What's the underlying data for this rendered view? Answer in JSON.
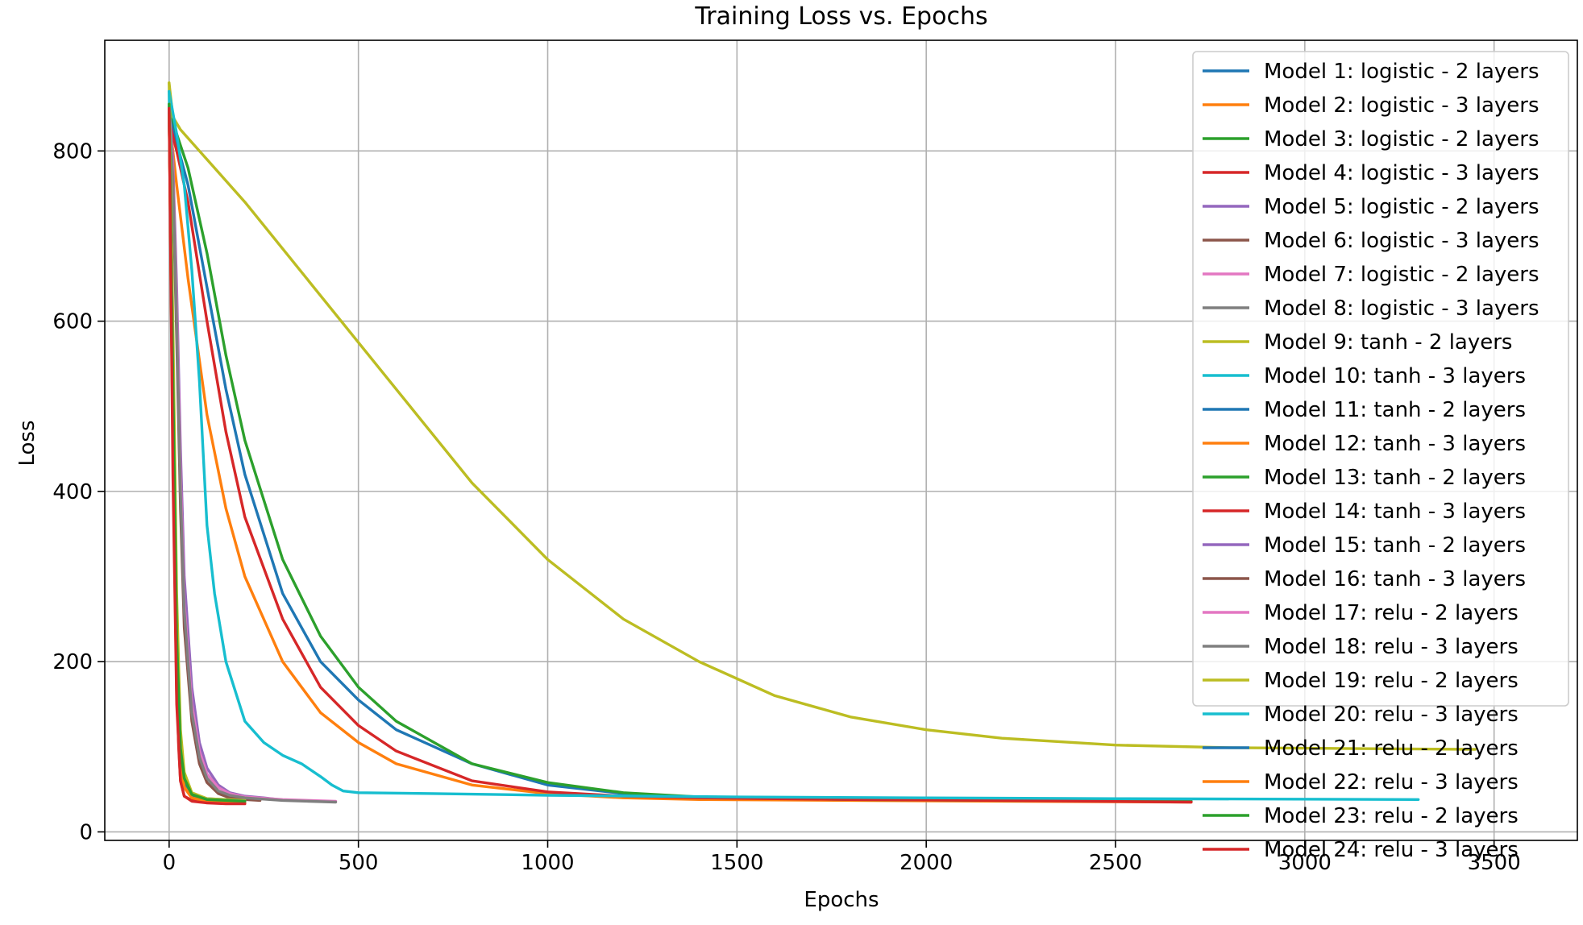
{
  "chart_data": {
    "type": "line",
    "title": "Training Loss vs. Epochs",
    "xlabel": "Epochs",
    "ylabel": "Loss",
    "xlim": [
      -170,
      3720
    ],
    "ylim": [
      -10,
      930
    ],
    "xticks": [
      0,
      500,
      1000,
      1500,
      2000,
      2500,
      3000,
      3500
    ],
    "yticks": [
      0,
      200,
      400,
      600,
      800
    ],
    "grid": true,
    "legend_position": "top-right",
    "series": [
      {
        "name": "Model 1: logistic - 2 layers",
        "color": "#1f77b4",
        "x": [
          0,
          20,
          50,
          100,
          150,
          200,
          300,
          400,
          500,
          600,
          800,
          1000,
          1200,
          1400,
          1800,
          2200,
          2700
        ],
        "y": [
          845,
          810,
          760,
          640,
          520,
          420,
          280,
          200,
          155,
          120,
          80,
          55,
          45,
          40,
          38,
          37,
          36
        ]
      },
      {
        "name": "Model 2: logistic - 3 layers",
        "color": "#ff7f0e",
        "x": [
          0,
          20,
          50,
          100,
          150,
          200,
          300,
          400,
          500,
          600,
          800,
          1000,
          1200,
          1400,
          1800,
          2200,
          2700
        ],
        "y": [
          840,
          760,
          650,
          490,
          380,
          300,
          200,
          140,
          105,
          80,
          55,
          45,
          40,
          38,
          37,
          36,
          35
        ]
      },
      {
        "name": "Model 3: logistic - 2 layers",
        "color": "#2ca02c",
        "x": [
          0,
          20,
          50,
          100,
          150,
          200,
          300,
          400,
          500,
          600,
          800,
          1000,
          1200,
          1400,
          1800,
          2200,
          2700
        ],
        "y": [
          855,
          820,
          780,
          680,
          560,
          460,
          320,
          230,
          170,
          130,
          80,
          58,
          46,
          41,
          38,
          37,
          36
        ]
      },
      {
        "name": "Model 4: logistic - 3 layers",
        "color": "#d62728",
        "x": [
          0,
          20,
          50,
          100,
          150,
          200,
          300,
          400,
          500,
          600,
          800,
          1000,
          1200,
          1400,
          1800,
          2200,
          2700
        ],
        "y": [
          835,
          800,
          740,
          600,
          470,
          370,
          250,
          170,
          125,
          95,
          60,
          47,
          42,
          40,
          38,
          37,
          35
        ]
      },
      {
        "name": "Model 5: logistic - 2 layers",
        "color": "#9467bd",
        "x": [
          0,
          10,
          20,
          30,
          40,
          60,
          80,
          100,
          130,
          160,
          200,
          250,
          290
        ],
        "y": [
          850,
          790,
          640,
          450,
          300,
          170,
          105,
          75,
          55,
          46,
          42,
          40,
          38
        ]
      },
      {
        "name": "Model 6: logistic - 3 layers",
        "color": "#8c564b",
        "x": [
          0,
          10,
          20,
          30,
          40,
          60,
          80,
          100,
          130,
          160,
          200,
          240
        ],
        "y": [
          845,
          760,
          580,
          380,
          240,
          130,
          80,
          58,
          45,
          40,
          38,
          37
        ]
      },
      {
        "name": "Model 7: logistic - 2 layers",
        "color": "#e377c2",
        "x": [
          0,
          10,
          20,
          30,
          40,
          60,
          80,
          100,
          130,
          160,
          200,
          300,
          440
        ],
        "y": [
          850,
          780,
          620,
          420,
          270,
          150,
          95,
          68,
          52,
          45,
          41,
          38,
          36
        ]
      },
      {
        "name": "Model 8: logistic - 3 layers",
        "color": "#7f7f7f",
        "x": [
          0,
          10,
          20,
          30,
          40,
          60,
          80,
          100,
          130,
          160,
          200,
          300,
          440
        ],
        "y": [
          848,
          770,
          600,
          400,
          260,
          140,
          88,
          63,
          48,
          43,
          40,
          37,
          35
        ]
      },
      {
        "name": "Model 9: tanh - 2 layers",
        "color": "#bcbd22",
        "x": [
          0,
          10,
          30,
          100,
          200,
          400,
          600,
          800,
          1000,
          1200,
          1400,
          1600,
          1800,
          2000,
          2200,
          2500,
          2800,
          3100,
          3450
        ],
        "y": [
          880,
          840,
          825,
          790,
          740,
          630,
          520,
          410,
          320,
          250,
          200,
          160,
          135,
          120,
          110,
          102,
          99,
          98,
          97
        ]
      },
      {
        "name": "Model 10: tanh - 3 layers",
        "color": "#17becf",
        "x": [
          0,
          20,
          40,
          60,
          80,
          100,
          120,
          150,
          200,
          250,
          300,
          350,
          400,
          430,
          460,
          500,
          700,
          1000,
          1500,
          2000,
          2500,
          3300
        ],
        "y": [
          870,
          820,
          760,
          660,
          530,
          360,
          280,
          200,
          130,
          105,
          90,
          80,
          65,
          55,
          48,
          46,
          45,
          43,
          41,
          40,
          39,
          38
        ]
      },
      {
        "name": "Model 11: tanh - 2 layers",
        "color": "#1f77b4",
        "x": [
          0,
          10,
          20,
          30,
          40,
          60,
          100,
          200
        ],
        "y": [
          850,
          500,
          200,
          90,
          60,
          42,
          38,
          36
        ]
      },
      {
        "name": "Model 12: tanh - 3 layers",
        "color": "#ff7f0e",
        "x": [
          0,
          10,
          20,
          30,
          40,
          60,
          100,
          200
        ],
        "y": [
          845,
          450,
          160,
          75,
          52,
          40,
          37,
          35
        ]
      },
      {
        "name": "Model 13: tanh - 2 layers",
        "color": "#2ca02c",
        "x": [
          0,
          10,
          20,
          30,
          40,
          60,
          100,
          200
        ],
        "y": [
          852,
          520,
          220,
          95,
          62,
          43,
          38,
          36
        ]
      },
      {
        "name": "Model 14: tanh - 3 layers",
        "color": "#d62728",
        "x": [
          0,
          10,
          20,
          25,
          30,
          40,
          60,
          100,
          200
        ],
        "y": [
          848,
          480,
          180,
          100,
          60,
          42,
          37,
          35,
          34
        ]
      },
      {
        "name": "Model 15: tanh - 2 layers",
        "color": "#9467bd",
        "x": [
          0,
          10,
          20,
          30,
          40,
          60,
          100,
          200
        ],
        "y": [
          850,
          560,
          260,
          110,
          68,
          45,
          39,
          37
        ]
      },
      {
        "name": "Model 16: tanh - 3 layers",
        "color": "#8c564b",
        "x": [
          0,
          10,
          20,
          30,
          40,
          60,
          100,
          200
        ],
        "y": [
          846,
          470,
          170,
          80,
          55,
          41,
          37,
          35
        ]
      },
      {
        "name": "Model 17: relu - 2 layers",
        "color": "#e377c2",
        "x": [
          0,
          10,
          20,
          30,
          40,
          60,
          100,
          200
        ],
        "y": [
          850,
          540,
          240,
          100,
          64,
          44,
          38,
          36
        ]
      },
      {
        "name": "Model 18: relu - 3 layers",
        "color": "#7f7f7f",
        "x": [
          0,
          10,
          20,
          30,
          40,
          60,
          100,
          200
        ],
        "y": [
          847,
          490,
          190,
          85,
          57,
          42,
          37,
          35
        ]
      },
      {
        "name": "Model 19: relu - 2 layers",
        "color": "#bcbd22",
        "x": [
          0,
          10,
          20,
          30,
          40,
          60,
          100,
          200
        ],
        "y": [
          880,
          600,
          280,
          120,
          70,
          46,
          39,
          37
        ]
      },
      {
        "name": "Model 20: relu - 3 layers",
        "color": "#17becf",
        "x": [
          0,
          10,
          20,
          30,
          40,
          60,
          100,
          200
        ],
        "y": [
          870,
          520,
          210,
          92,
          60,
          43,
          38,
          36
        ]
      },
      {
        "name": "Model 21: relu - 2 layers",
        "color": "#1f77b4",
        "x": [
          0,
          10,
          20,
          30,
          40,
          60,
          100,
          200
        ],
        "y": [
          845,
          510,
          205,
          90,
          58,
          42,
          37,
          35
        ]
      },
      {
        "name": "Model 22: relu - 3 layers",
        "color": "#ff7f0e",
        "x": [
          0,
          10,
          20,
          30,
          40,
          60,
          100,
          200
        ],
        "y": [
          842,
          460,
          165,
          78,
          53,
          40,
          36,
          34
        ]
      },
      {
        "name": "Model 23: relu - 2 layers",
        "color": "#2ca02c",
        "x": [
          0,
          10,
          20,
          30,
          40,
          60,
          100,
          200
        ],
        "y": [
          855,
          530,
          230,
          98,
          63,
          44,
          38,
          36
        ]
      },
      {
        "name": "Model 24: relu - 3 layers",
        "color": "#d62728",
        "x": [
          0,
          10,
          20,
          25,
          30,
          40,
          60,
          100,
          150,
          200
        ],
        "y": [
          850,
          420,
          150,
          105,
          60,
          42,
          36,
          34,
          33,
          33
        ]
      }
    ]
  }
}
